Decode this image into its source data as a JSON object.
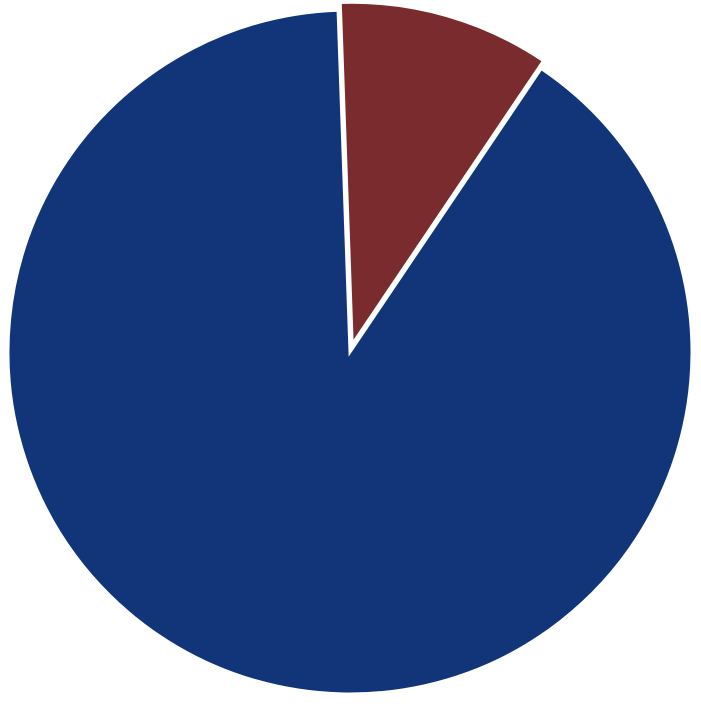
{
  "chart_data": {
    "type": "pie",
    "title": "",
    "start_angle_deg": -2,
    "slices": [
      {
        "value": 10,
        "color": "#7a2b2e",
        "exploded": true
      },
      {
        "value": 90,
        "color": "#12357a",
        "exploded": false
      }
    ],
    "background": "#ffffff",
    "legend": "none",
    "grid": false
  }
}
